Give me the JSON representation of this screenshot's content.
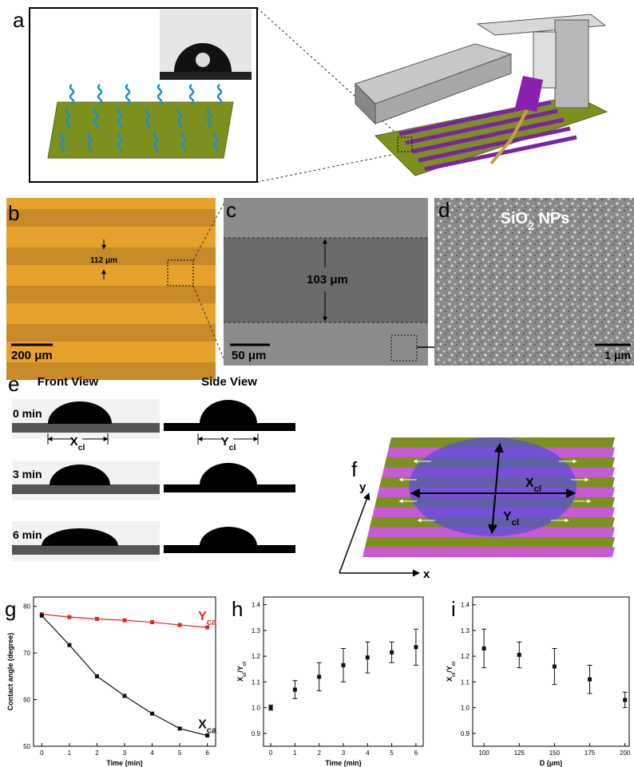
{
  "panel_labels": [
    "a",
    "b",
    "c",
    "d",
    "e",
    "f",
    "g",
    "h",
    "i"
  ],
  "b": {
    "width_label": "112 μm",
    "scale": "200 μm"
  },
  "c": {
    "width_label": "103 μm",
    "scale": "50 μm"
  },
  "d": {
    "title": "SiO2 NPs",
    "scale": "1 μm"
  },
  "e": {
    "front": "Front View",
    "side": "Side View",
    "times": [
      "0 min",
      "3 min",
      "6 min"
    ],
    "x_label": "Xcl",
    "y_label": "Ycl"
  },
  "f": {
    "x_label": "Xcl",
    "y_label": "Ycl",
    "x_axis": "x",
    "y_axis": "y"
  },
  "chart_data": [
    {
      "type": "line",
      "xlabel": "Time (min)",
      "ylabel": "Contact angle (degree)",
      "x": [
        0,
        1,
        2,
        3,
        4,
        5,
        6
      ],
      "xlim": [
        -0.3,
        6.3
      ],
      "xticks": [
        0,
        1,
        2,
        3,
        4,
        5,
        6
      ],
      "ylim": [
        50,
        82
      ],
      "yticks": [
        50,
        60,
        70,
        80
      ],
      "series": [
        {
          "name": "Yca",
          "color": "#e8251f",
          "values": [
            78.3,
            77.7,
            77.3,
            77,
            76.6,
            76,
            75.5
          ]
        },
        {
          "name": "Xca",
          "color": "#111111",
          "values": [
            78,
            71.7,
            65,
            60.8,
            57,
            53.8,
            52.3
          ]
        }
      ]
    },
    {
      "type": "scatter",
      "xlabel": "Time (min)",
      "ylabel": "Xcl/Ycl",
      "color": "#111111",
      "x": [
        0,
        1,
        2,
        3,
        4,
        5,
        6
      ],
      "xlim": [
        -0.3,
        6.3
      ],
      "xticks": [
        0,
        1,
        2,
        3,
        4,
        5,
        6
      ],
      "values": [
        1.0,
        1.07,
        1.12,
        1.165,
        1.195,
        1.215,
        1.235
      ],
      "errors": [
        0.01,
        0.035,
        0.055,
        0.065,
        0.06,
        0.04,
        0.07
      ],
      "ylim": [
        0.85,
        1.43
      ],
      "yticks": [
        0.9,
        {
          "value": 1,
          "label": "1.0"
        },
        1.1,
        1.2,
        1.3,
        1.4
      ]
    },
    {
      "type": "scatter",
      "xlabel": "D (μm)",
      "ylabel": "Xcl/Ycl",
      "color": "#111111",
      "x": [
        100,
        125,
        150,
        175,
        200
      ],
      "xlim": [
        92,
        203
      ],
      "xticks": [
        100,
        125,
        150,
        175,
        200
      ],
      "values": [
        1.23,
        1.205,
        1.16,
        1.11,
        1.03
      ],
      "errors": [
        0.075,
        0.05,
        0.07,
        0.055,
        0.03
      ],
      "ylim": [
        0.85,
        1.43
      ],
      "yticks": [
        0.9,
        {
          "value": 1,
          "label": "1.0"
        },
        1.1,
        1.2,
        1.3,
        1.4
      ]
    }
  ]
}
